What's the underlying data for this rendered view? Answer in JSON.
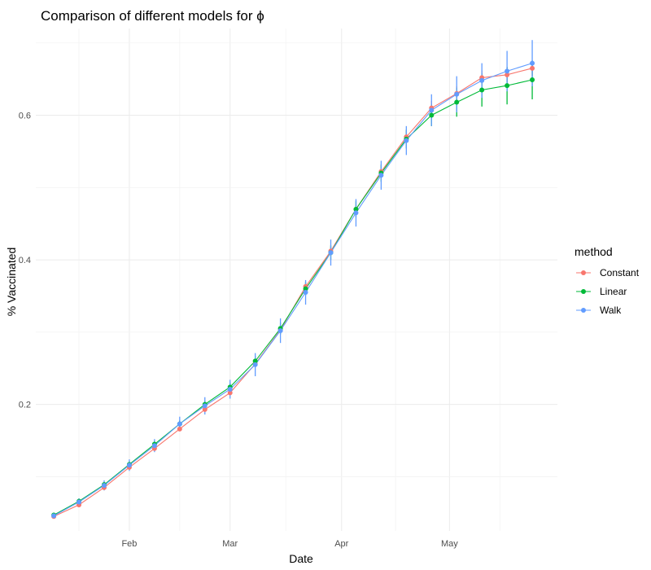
{
  "chart_data": {
    "type": "line",
    "title": "Comparison of different models for ϕ",
    "xlabel": "Date",
    "ylabel": "% Vaccinated",
    "x_tick_labels": [
      "Feb",
      "Mar",
      "Apr",
      "May"
    ],
    "x_tick_dates": [
      "2021-02-01",
      "2021-03-01",
      "2021-04-01",
      "2021-05-01"
    ],
    "y_ticks": [
      0.2,
      0.4,
      0.6
    ],
    "x_range": [
      "2021-01-06",
      "2021-05-31"
    ],
    "y_range": [
      0.025,
      0.72
    ],
    "grid": true,
    "legend": {
      "title": "method",
      "position": "right"
    },
    "x": [
      "2021-01-11",
      "2021-01-18",
      "2021-01-25",
      "2021-02-01",
      "2021-02-08",
      "2021-02-15",
      "2021-02-22",
      "2021-03-01",
      "2021-03-08",
      "2021-03-15",
      "2021-03-22",
      "2021-03-29",
      "2021-04-05",
      "2021-04-12",
      "2021-04-19",
      "2021-04-26",
      "2021-05-03",
      "2021-05-10",
      "2021-05-17",
      "2021-05-24"
    ],
    "series": [
      {
        "name": "Constant",
        "color": "#f8766d",
        "values": [
          0.045,
          0.061,
          0.085,
          0.113,
          0.139,
          0.166,
          0.193,
          0.216,
          0.256,
          0.303,
          0.363,
          0.412,
          0.47,
          0.522,
          0.57,
          0.61,
          0.63,
          0.652,
          0.656,
          0.665
        ],
        "lower": [
          0.042,
          0.058,
          0.082,
          0.11,
          0.136,
          0.163,
          0.19,
          0.213,
          0.252,
          0.298,
          0.357,
          0.406,
          0.464,
          0.514,
          0.561,
          0.6,
          0.62,
          0.642,
          0.646,
          0.655
        ],
        "upper": [
          0.048,
          0.064,
          0.088,
          0.116,
          0.142,
          0.169,
          0.196,
          0.219,
          0.26,
          0.308,
          0.369,
          0.418,
          0.476,
          0.53,
          0.579,
          0.62,
          0.64,
          0.662,
          0.666,
          0.675
        ]
      },
      {
        "name": "Linear",
        "color": "#00ba38",
        "values": [
          0.047,
          0.066,
          0.089,
          0.117,
          0.145,
          0.173,
          0.2,
          0.224,
          0.26,
          0.305,
          0.36,
          0.41,
          0.47,
          0.52,
          0.567,
          0.6,
          0.618,
          0.635,
          0.641,
          0.649
        ],
        "lower": [
          0.044,
          0.062,
          0.085,
          0.113,
          0.141,
          0.168,
          0.195,
          0.218,
          0.253,
          0.297,
          0.351,
          0.4,
          0.459,
          0.508,
          0.554,
          0.585,
          0.598,
          0.612,
          0.615,
          0.622
        ],
        "upper": [
          0.05,
          0.07,
          0.093,
          0.121,
          0.149,
          0.178,
          0.205,
          0.23,
          0.267,
          0.313,
          0.369,
          0.42,
          0.481,
          0.532,
          0.58,
          0.615,
          0.638,
          0.658,
          0.667,
          0.676
        ]
      },
      {
        "name": "Walk",
        "color": "#619cff",
        "values": [
          0.046,
          0.065,
          0.088,
          0.116,
          0.143,
          0.173,
          0.198,
          0.221,
          0.255,
          0.302,
          0.355,
          0.41,
          0.465,
          0.517,
          0.565,
          0.607,
          0.629,
          0.648,
          0.661,
          0.672
        ],
        "lower": [
          0.042,
          0.06,
          0.081,
          0.108,
          0.134,
          0.163,
          0.186,
          0.208,
          0.239,
          0.285,
          0.338,
          0.392,
          0.446,
          0.497,
          0.545,
          0.585,
          0.604,
          0.624,
          0.633,
          0.64
        ],
        "upper": [
          0.05,
          0.07,
          0.095,
          0.124,
          0.152,
          0.183,
          0.21,
          0.234,
          0.271,
          0.319,
          0.372,
          0.428,
          0.484,
          0.537,
          0.585,
          0.629,
          0.654,
          0.672,
          0.689,
          0.704
        ]
      }
    ]
  }
}
